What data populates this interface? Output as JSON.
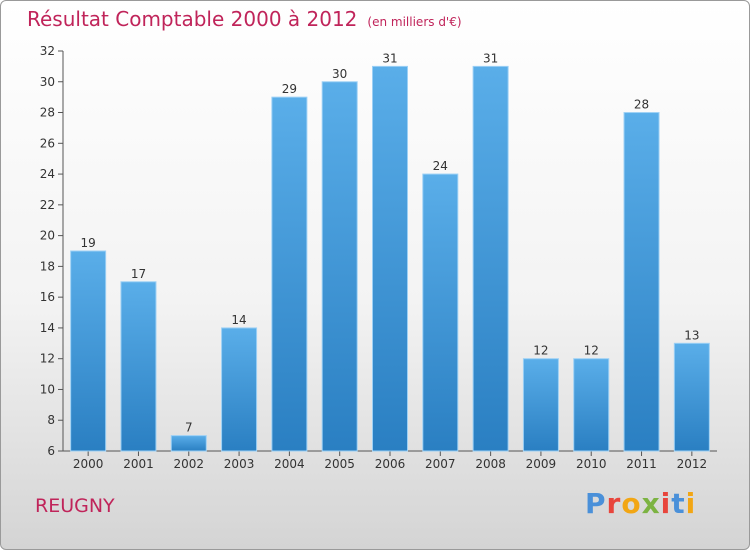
{
  "title": "Résultat Comptable 2000 à 2012",
  "subtitle": "(en milliers d'€)",
  "place": "REUGNY",
  "brand": "Proxiti",
  "colors": {
    "accent": "#c0245a",
    "bar_top": "#5aaee9",
    "bar_bottom": "#2a7fc2"
  },
  "chart_data": {
    "type": "bar",
    "title": "Résultat Comptable 2000 à 2012",
    "subtitle": "(en milliers d'€)",
    "categories": [
      "2000",
      "2001",
      "2002",
      "2003",
      "2004",
      "2005",
      "2006",
      "2007",
      "2008",
      "2009",
      "2010",
      "2011",
      "2012"
    ],
    "values": [
      19,
      17,
      7,
      14,
      29,
      30,
      31,
      24,
      31,
      12,
      12,
      28,
      13
    ],
    "ylim": [
      6,
      32
    ],
    "yticks": [
      6,
      8,
      10,
      12,
      14,
      16,
      18,
      20,
      22,
      24,
      26,
      28,
      30,
      32
    ],
    "grid": false,
    "xlabel": "",
    "ylabel": ""
  }
}
